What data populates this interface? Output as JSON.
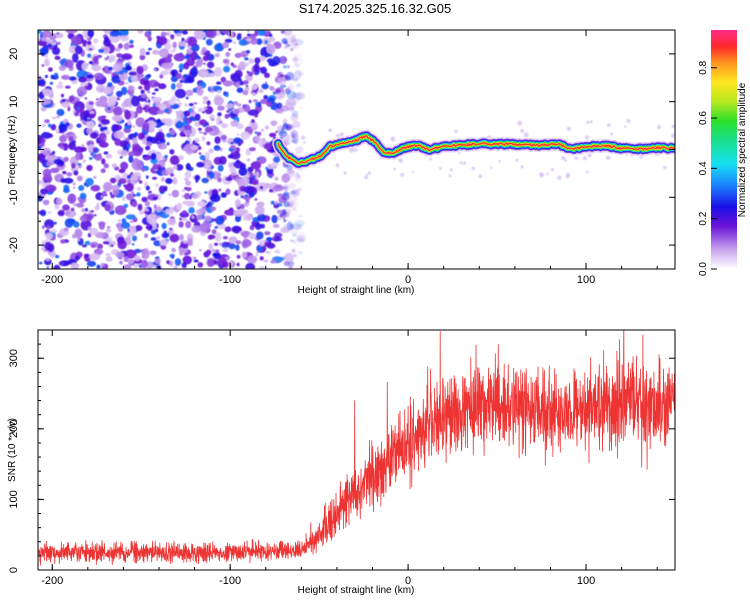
{
  "title": "S174.2025.325.16.32.G05",
  "chart_data": [
    {
      "type": "heatmap",
      "name": "spectrogram",
      "xlabel": "Height of straight line (km)",
      "ylabel": "Frequency (Hz)",
      "xlim": [
        -208,
        150
      ],
      "ylim": [
        -25,
        25
      ],
      "xticks": [
        -200,
        -100,
        0,
        100
      ],
      "yticks": [
        -20,
        -10,
        0,
        10,
        20
      ],
      "colorbar": {
        "label": "Normalized spectral amplitude",
        "range": [
          0.0,
          0.95
        ],
        "ticks": [
          0.0,
          0.2,
          0.4,
          0.6,
          0.8
        ],
        "tick_labels": [
          "0.0",
          "0.2",
          "0.4",
          "0.6",
          "0.8"
        ]
      },
      "noise_region": {
        "x_range": [
          -208,
          -60
        ],
        "amplitude": [
          0.05,
          0.35
        ]
      },
      "signal_ridge": [
        {
          "x": -73,
          "y": 1.0
        },
        {
          "x": -68,
          "y": -1.5
        },
        {
          "x": -62,
          "y": -2.8
        },
        {
          "x": -55,
          "y": -2.2
        },
        {
          "x": -48,
          "y": -1.2
        },
        {
          "x": -45,
          "y": 0.5
        },
        {
          "x": -38,
          "y": 1.2
        },
        {
          "x": -30,
          "y": 1.8
        },
        {
          "x": -24,
          "y": 2.8
        },
        {
          "x": -18,
          "y": 1.5
        },
        {
          "x": -14,
          "y": -0.6
        },
        {
          "x": -8,
          "y": -0.8
        },
        {
          "x": -2,
          "y": 0.4
        },
        {
          "x": 5,
          "y": 0.9
        },
        {
          "x": 12,
          "y": 0.0
        },
        {
          "x": 20,
          "y": 0.6
        },
        {
          "x": 30,
          "y": 0.9
        },
        {
          "x": 40,
          "y": 1.2
        },
        {
          "x": 55,
          "y": 1.1
        },
        {
          "x": 70,
          "y": 0.9
        },
        {
          "x": 85,
          "y": 1.0
        },
        {
          "x": 92,
          "y": 0.1
        },
        {
          "x": 100,
          "y": 0.6
        },
        {
          "x": 110,
          "y": 0.8
        },
        {
          "x": 120,
          "y": 0.3
        },
        {
          "x": 130,
          "y": 0.1
        },
        {
          "x": 140,
          "y": 0.4
        },
        {
          "x": 150,
          "y": 0.2
        }
      ]
    },
    {
      "type": "line",
      "name": "snr",
      "xlabel": "Height of straight line (km)",
      "ylabel": "SNR (10 * v/v)",
      "xlim": [
        -208,
        150
      ],
      "ylim": [
        0,
        340
      ],
      "xticks": [
        -200,
        -100,
        0,
        100
      ],
      "yticks": [
        0,
        100,
        200,
        300
      ],
      "color": "#ee3333",
      "mean_profile": [
        {
          "x": -208,
          "y": 25
        },
        {
          "x": -150,
          "y": 25
        },
        {
          "x": -100,
          "y": 25
        },
        {
          "x": -60,
          "y": 28
        },
        {
          "x": -50,
          "y": 50
        },
        {
          "x": -40,
          "y": 80
        },
        {
          "x": -30,
          "y": 110
        },
        {
          "x": -20,
          "y": 135
        },
        {
          "x": -10,
          "y": 160
        },
        {
          "x": 0,
          "y": 180
        },
        {
          "x": 10,
          "y": 200
        },
        {
          "x": 20,
          "y": 215
        },
        {
          "x": 30,
          "y": 228
        },
        {
          "x": 45,
          "y": 235
        },
        {
          "x": 60,
          "y": 232
        },
        {
          "x": 80,
          "y": 225
        },
        {
          "x": 100,
          "y": 225
        },
        {
          "x": 120,
          "y": 230
        },
        {
          "x": 140,
          "y": 232
        },
        {
          "x": 150,
          "y": 228
        }
      ],
      "noise_amplitude": [
        {
          "x": -208,
          "y": 12
        },
        {
          "x": -60,
          "y": 12
        },
        {
          "x": -40,
          "y": 30
        },
        {
          "x": 0,
          "y": 50
        },
        {
          "x": 40,
          "y": 55
        },
        {
          "x": 150,
          "y": 55
        }
      ],
      "notable_peaks": [
        {
          "x": -30,
          "y": 240
        },
        {
          "x": 18,
          "y": 338
        },
        {
          "x": 54,
          "y": 292
        },
        {
          "x": 132,
          "y": 333
        }
      ]
    }
  ]
}
